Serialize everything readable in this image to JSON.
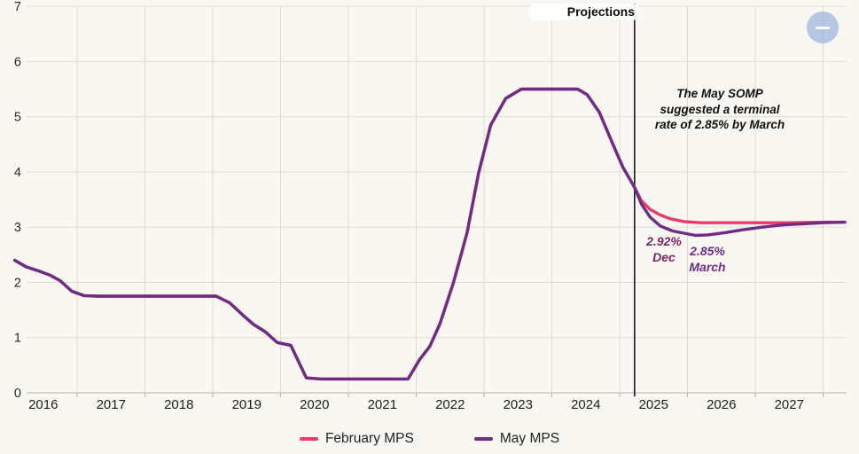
{
  "chart_data": {
    "type": "line",
    "title": "",
    "unit": "%",
    "ylim": [
      0,
      7
    ],
    "y_ticks": [
      0,
      1,
      2,
      3,
      4,
      5,
      6,
      7
    ],
    "x_tick_years": [
      2016,
      2017,
      2018,
      2019,
      2020,
      2021,
      2022,
      2023,
      2024,
      2025,
      2026,
      2027
    ],
    "grid": true,
    "legend_position": "bottom",
    "projections_label": "Projections",
    "projection_line_x": 2025.22,
    "series": [
      {
        "name": "February MPS",
        "color": "#ea3b69",
        "points": [
          [
            2016.08,
            2.4
          ],
          [
            2016.25,
            2.28
          ],
          [
            2016.45,
            2.2
          ],
          [
            2016.6,
            2.13
          ],
          [
            2016.75,
            2.03
          ],
          [
            2016.92,
            1.84
          ],
          [
            2017.1,
            1.76
          ],
          [
            2017.3,
            1.75
          ],
          [
            2018.0,
            1.75
          ],
          [
            2018.5,
            1.75
          ],
          [
            2019.05,
            1.75
          ],
          [
            2019.25,
            1.63
          ],
          [
            2019.45,
            1.4
          ],
          [
            2019.6,
            1.24
          ],
          [
            2019.78,
            1.1
          ],
          [
            2019.95,
            0.91
          ],
          [
            2020.15,
            0.86
          ],
          [
            2020.38,
            0.27
          ],
          [
            2020.6,
            0.25
          ],
          [
            2021.0,
            0.25
          ],
          [
            2021.5,
            0.25
          ],
          [
            2021.88,
            0.25
          ],
          [
            2022.05,
            0.6
          ],
          [
            2022.2,
            0.84
          ],
          [
            2022.35,
            1.25
          ],
          [
            2022.55,
            2.0
          ],
          [
            2022.75,
            2.9
          ],
          [
            2022.92,
            3.98
          ],
          [
            2023.1,
            4.85
          ],
          [
            2023.32,
            5.33
          ],
          [
            2023.55,
            5.5
          ],
          [
            2024.0,
            5.5
          ],
          [
            2024.38,
            5.5
          ],
          [
            2024.52,
            5.4
          ],
          [
            2024.7,
            5.08
          ],
          [
            2024.9,
            4.5
          ],
          [
            2025.05,
            4.08
          ],
          [
            2025.22,
            3.72
          ],
          [
            2025.32,
            3.48
          ],
          [
            2025.45,
            3.32
          ],
          [
            2025.6,
            3.22
          ],
          [
            2025.75,
            3.15
          ],
          [
            2025.95,
            3.1
          ],
          [
            2026.2,
            3.08
          ],
          [
            2026.6,
            3.08
          ],
          [
            2027.0,
            3.08
          ],
          [
            2027.5,
            3.08
          ],
          [
            2028.0,
            3.09
          ],
          [
            2028.32,
            3.09
          ]
        ]
      },
      {
        "name": "May MPS",
        "color": "#6e2c85",
        "points": [
          [
            2016.08,
            2.4
          ],
          [
            2016.25,
            2.28
          ],
          [
            2016.45,
            2.2
          ],
          [
            2016.6,
            2.13
          ],
          [
            2016.75,
            2.03
          ],
          [
            2016.92,
            1.84
          ],
          [
            2017.1,
            1.76
          ],
          [
            2017.3,
            1.75
          ],
          [
            2018.0,
            1.75
          ],
          [
            2018.5,
            1.75
          ],
          [
            2019.05,
            1.75
          ],
          [
            2019.25,
            1.63
          ],
          [
            2019.45,
            1.4
          ],
          [
            2019.6,
            1.24
          ],
          [
            2019.78,
            1.1
          ],
          [
            2019.95,
            0.91
          ],
          [
            2020.15,
            0.86
          ],
          [
            2020.38,
            0.27
          ],
          [
            2020.6,
            0.25
          ],
          [
            2021.0,
            0.25
          ],
          [
            2021.5,
            0.25
          ],
          [
            2021.88,
            0.25
          ],
          [
            2022.05,
            0.6
          ],
          [
            2022.2,
            0.84
          ],
          [
            2022.35,
            1.25
          ],
          [
            2022.55,
            2.0
          ],
          [
            2022.75,
            2.9
          ],
          [
            2022.92,
            3.98
          ],
          [
            2023.1,
            4.85
          ],
          [
            2023.32,
            5.33
          ],
          [
            2023.55,
            5.5
          ],
          [
            2024.0,
            5.5
          ],
          [
            2024.38,
            5.5
          ],
          [
            2024.52,
            5.4
          ],
          [
            2024.7,
            5.08
          ],
          [
            2024.9,
            4.5
          ],
          [
            2025.05,
            4.08
          ],
          [
            2025.22,
            3.72
          ],
          [
            2025.32,
            3.42
          ],
          [
            2025.45,
            3.18
          ],
          [
            2025.6,
            3.02
          ],
          [
            2025.78,
            2.93
          ],
          [
            2025.95,
            2.89
          ],
          [
            2026.12,
            2.85
          ],
          [
            2026.3,
            2.86
          ],
          [
            2026.55,
            2.9
          ],
          [
            2026.8,
            2.95
          ],
          [
            2027.1,
            3.0
          ],
          [
            2027.4,
            3.04
          ],
          [
            2027.7,
            3.06
          ],
          [
            2028.0,
            3.08
          ],
          [
            2028.32,
            3.09
          ]
        ]
      }
    ],
    "annotations": {
      "note_lines": [
        "The May SOMP",
        "suggested a terminal",
        "rate of 2.85% by March"
      ],
      "callouts": [
        {
          "value": "2.92%",
          "period": "Dec",
          "color": "#7d2566"
        },
        {
          "value": "2.85%",
          "period": "March",
          "color": "#6e2d85"
        }
      ]
    },
    "colors": {
      "background": "#f8f7f1",
      "gridline": "#dddcd4",
      "axis": "#b5b5ad",
      "projection_line": "#0c0c0c"
    }
  },
  "legend": {
    "items": [
      "February MPS",
      "May MPS"
    ]
  },
  "controls": {
    "collapse_glyph": "minus"
  }
}
